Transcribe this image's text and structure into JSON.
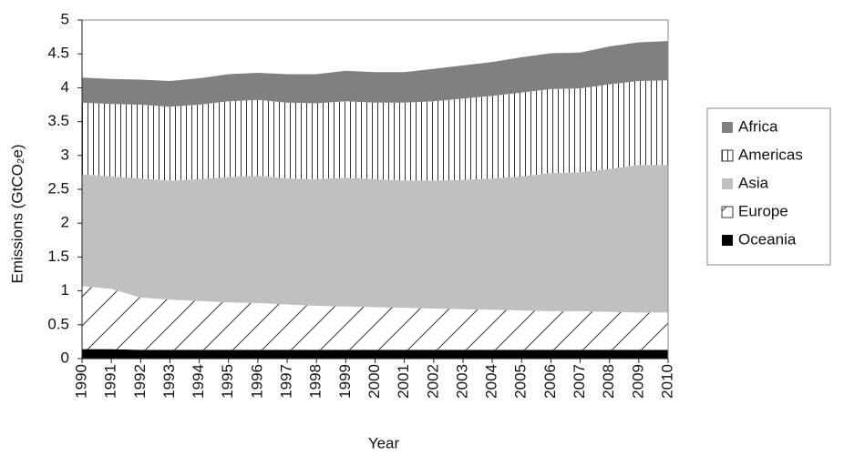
{
  "chart_data": {
    "type": "stacked_area",
    "x_label": "Year",
    "y_label": "Emissions (GtCO₂e)",
    "categories": [
      "1990",
      "1991",
      "1992",
      "1993",
      "1994",
      "1995",
      "1996",
      "1997",
      "1998",
      "1999",
      "2000",
      "2001",
      "2002",
      "2003",
      "2004",
      "2005",
      "2006",
      "2007",
      "2008",
      "2009",
      "2010"
    ],
    "series": [
      {
        "name": "Africa",
        "color": "#808080",
        "pattern": "solid",
        "values": [
          0.37,
          0.37,
          0.37,
          0.38,
          0.39,
          0.4,
          0.4,
          0.42,
          0.43,
          0.45,
          0.45,
          0.45,
          0.48,
          0.49,
          0.5,
          0.52,
          0.53,
          0.53,
          0.56,
          0.57,
          0.58
        ]
      },
      {
        "name": "Americas",
        "color": "#333333",
        "pattern": "vertical",
        "values": [
          1.06,
          1.07,
          1.09,
          1.09,
          1.1,
          1.12,
          1.12,
          1.12,
          1.12,
          1.13,
          1.13,
          1.15,
          1.17,
          1.2,
          1.22,
          1.24,
          1.24,
          1.24,
          1.25,
          1.24,
          1.25
        ]
      },
      {
        "name": "Asia",
        "color": "#c0c0c0",
        "pattern": "solid",
        "values": [
          1.65,
          1.66,
          1.76,
          1.76,
          1.8,
          1.85,
          1.88,
          1.86,
          1.87,
          1.9,
          1.89,
          1.88,
          1.89,
          1.91,
          1.94,
          1.98,
          2.04,
          2.05,
          2.11,
          2.18,
          2.18
        ]
      },
      {
        "name": "Europe",
        "color": "#333333",
        "pattern": "diagonal",
        "values": [
          0.93,
          0.89,
          0.77,
          0.74,
          0.72,
          0.7,
          0.69,
          0.67,
          0.65,
          0.64,
          0.63,
          0.62,
          0.61,
          0.6,
          0.59,
          0.58,
          0.57,
          0.57,
          0.56,
          0.55,
          0.55
        ]
      },
      {
        "name": "Oceania",
        "color": "#000000",
        "pattern": "solid",
        "values": [
          0.14,
          0.14,
          0.13,
          0.13,
          0.13,
          0.13,
          0.13,
          0.13,
          0.13,
          0.13,
          0.13,
          0.13,
          0.13,
          0.13,
          0.13,
          0.13,
          0.13,
          0.13,
          0.13,
          0.13,
          0.13
        ]
      }
    ],
    "ylim": [
      0,
      5
    ],
    "yticks": [
      0,
      0.5,
      1,
      1.5,
      2,
      2.5,
      3,
      3.5,
      4,
      4.5,
      5
    ],
    "grid": false,
    "legend": "right"
  }
}
